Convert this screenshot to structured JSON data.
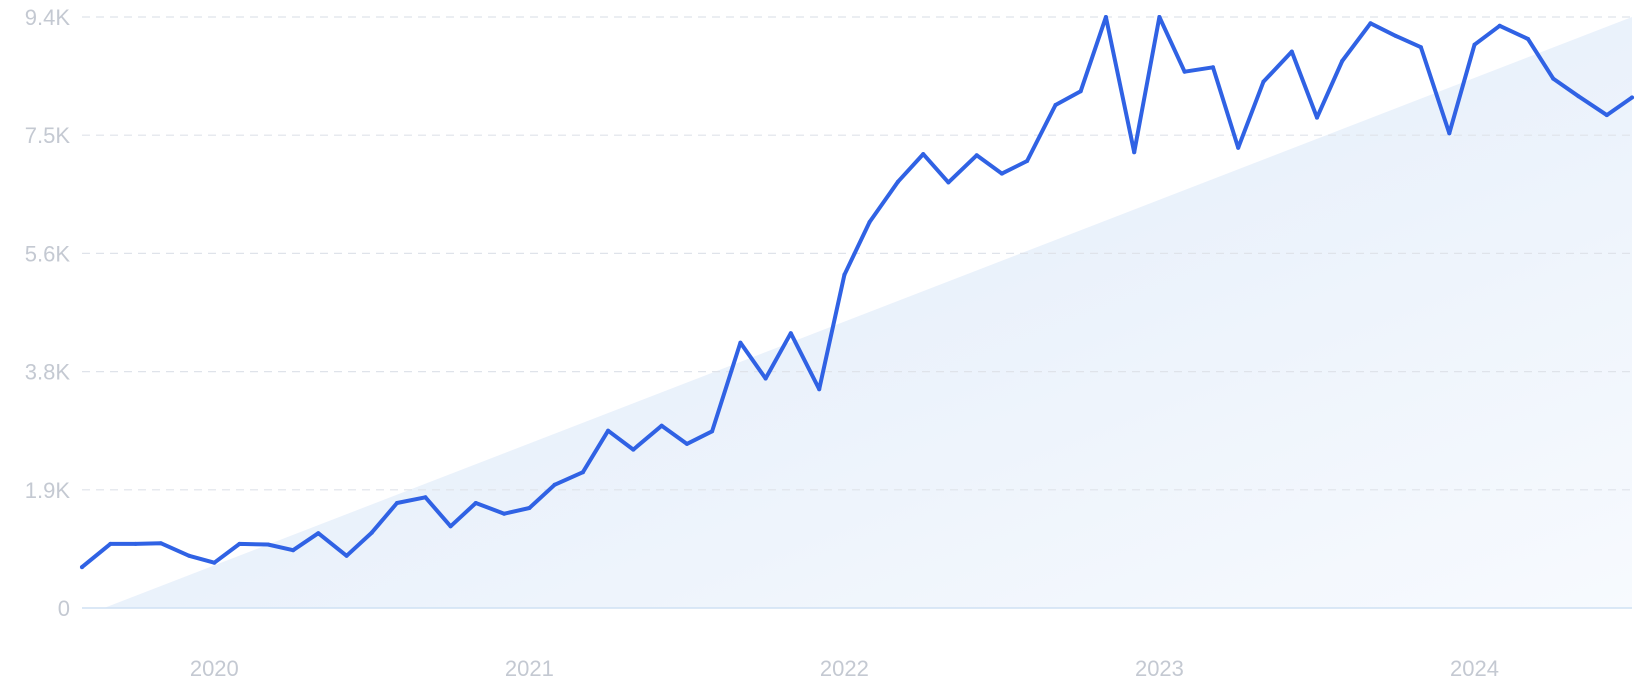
{
  "chart_data": {
    "type": "line",
    "title": "",
    "xlabel": "",
    "ylabel": "",
    "grid": true,
    "legend": "none",
    "ylim": [
      0,
      9400
    ],
    "x_range": [
      2019.58,
      2024.5
    ],
    "y_ticks": [
      {
        "value": 0,
        "label": "0"
      },
      {
        "value": 1880,
        "label": "1.9K"
      },
      {
        "value": 3760,
        "label": "3.8K"
      },
      {
        "value": 5640,
        "label": "5.6K"
      },
      {
        "value": 7520,
        "label": "7.5K"
      },
      {
        "value": 9400,
        "label": "9.4K"
      }
    ],
    "x_ticks": [
      {
        "value": 2020,
        "label": "2020"
      },
      {
        "value": 2021,
        "label": "2021"
      },
      {
        "value": 2022,
        "label": "2022"
      },
      {
        "value": 2023,
        "label": "2023"
      },
      {
        "value": 2024,
        "label": "2024"
      }
    ],
    "series": [
      {
        "color": "#3062e4",
        "x": [
          2019.58,
          2019.67,
          2019.75,
          2019.83,
          2019.92,
          2020.0,
          2020.08,
          2020.17,
          2020.25,
          2020.33,
          2020.42,
          2020.5,
          2020.58,
          2020.67,
          2020.75,
          2020.83,
          2020.92,
          2021.0,
          2021.08,
          2021.17,
          2021.25,
          2021.33,
          2021.42,
          2021.5,
          2021.58,
          2021.67,
          2021.75,
          2021.83,
          2021.92,
          2022.0,
          2022.08,
          2022.17,
          2022.25,
          2022.33,
          2022.42,
          2022.5,
          2022.58,
          2022.67,
          2022.75,
          2022.83,
          2022.92,
          2023.0,
          2023.08,
          2023.17,
          2023.25,
          2023.33,
          2023.42,
          2023.5,
          2023.58,
          2023.67,
          2023.75,
          2023.83,
          2023.92,
          2024.0,
          2024.08,
          2024.17,
          2024.25,
          2024.33,
          2024.42,
          2024.5
        ],
        "values": [
          650,
          1020,
          1020,
          1030,
          830,
          720,
          1020,
          1010,
          920,
          1190,
          830,
          1200,
          1670,
          1760,
          1300,
          1670,
          1500,
          1590,
          1960,
          2160,
          2820,
          2520,
          2900,
          2610,
          2810,
          4220,
          3650,
          4370,
          3480,
          5300,
          6140,
          6780,
          7220,
          6770,
          7200,
          6910,
          7110,
          8000,
          8220,
          9400,
          7250,
          9400,
          8530,
          8600,
          7320,
          8370,
          8850,
          7800,
          8700,
          9300,
          9100,
          8920,
          7550,
          8960,
          9260,
          9050,
          8420,
          8140,
          7840,
          8120
        ]
      }
    ],
    "trend_fill": {
      "start": {
        "x": 2019.65,
        "y": 0
      },
      "end": {
        "x": 2024.5,
        "y": 9400
      },
      "color_start": "#dde9f8",
      "color_end": "#f7fafe"
    }
  }
}
